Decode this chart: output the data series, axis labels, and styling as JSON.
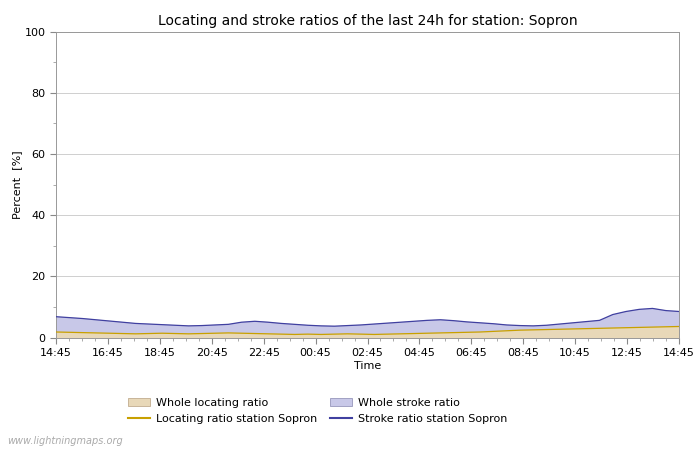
{
  "title": "Locating and stroke ratios of the last 24h for station: Sopron",
  "xlabel": "Time",
  "ylabel": "Percent  [%]",
  "ylim": [
    0,
    100
  ],
  "yticks": [
    0,
    20,
    40,
    60,
    80,
    100
  ],
  "yticks_minor": [
    10,
    30,
    50,
    70,
    90
  ],
  "xtick_labels": [
    "14:45",
    "16:45",
    "18:45",
    "20:45",
    "22:45",
    "00:45",
    "02:45",
    "04:45",
    "06:45",
    "08:45",
    "10:45",
    "12:45",
    "14:45"
  ],
  "background_color": "#ffffff",
  "plot_bg_color": "#ffffff",
  "grid_color": "#c8c8c8",
  "watermark": "www.lightningmaps.org",
  "whole_locating_color": "#e8d8b8",
  "whole_stroke_color": "#c8c8e8",
  "locating_line_color": "#c8a000",
  "stroke_line_color": "#4040a0",
  "whole_locating_values": [
    1.8,
    1.7,
    1.6,
    1.5,
    1.4,
    1.3,
    1.2,
    1.3,
    1.4,
    1.3,
    1.2,
    1.3,
    1.4,
    1.5,
    1.4,
    1.3,
    1.2,
    1.1,
    1.0,
    1.1,
    1.0,
    1.1,
    1.2,
    1.1,
    1.0,
    1.1,
    1.2,
    1.3,
    1.4,
    1.5,
    1.6,
    1.7,
    1.8,
    2.0,
    2.2,
    2.4,
    2.5,
    2.6,
    2.7,
    2.8,
    2.9,
    3.0,
    3.1,
    3.2,
    3.3,
    3.4,
    3.5,
    3.6
  ],
  "whole_stroke_values": [
    6.8,
    6.5,
    6.2,
    5.8,
    5.4,
    5.0,
    4.6,
    4.4,
    4.2,
    4.0,
    3.8,
    3.9,
    4.1,
    4.3,
    5.0,
    5.3,
    5.0,
    4.6,
    4.3,
    4.0,
    3.8,
    3.7,
    3.9,
    4.1,
    4.4,
    4.7,
    5.0,
    5.3,
    5.6,
    5.8,
    5.5,
    5.1,
    4.8,
    4.5,
    4.1,
    3.9,
    3.8,
    4.0,
    4.4,
    4.8,
    5.2,
    5.6,
    7.5,
    8.5,
    9.2,
    9.5,
    8.8,
    8.5
  ],
  "locating_line_values": [
    1.8,
    1.7,
    1.6,
    1.5,
    1.4,
    1.3,
    1.2,
    1.3,
    1.4,
    1.3,
    1.2,
    1.3,
    1.4,
    1.5,
    1.4,
    1.3,
    1.2,
    1.1,
    1.0,
    1.1,
    1.0,
    1.1,
    1.2,
    1.1,
    1.0,
    1.1,
    1.2,
    1.3,
    1.4,
    1.5,
    1.6,
    1.7,
    1.8,
    2.0,
    2.2,
    2.4,
    2.5,
    2.6,
    2.7,
    2.8,
    2.9,
    3.0,
    3.1,
    3.2,
    3.3,
    3.4,
    3.5,
    3.6
  ],
  "stroke_line_values": [
    6.8,
    6.5,
    6.2,
    5.8,
    5.4,
    5.0,
    4.6,
    4.4,
    4.2,
    4.0,
    3.8,
    3.9,
    4.1,
    4.3,
    5.0,
    5.3,
    5.0,
    4.6,
    4.3,
    4.0,
    3.8,
    3.7,
    3.9,
    4.1,
    4.4,
    4.7,
    5.0,
    5.3,
    5.6,
    5.8,
    5.5,
    5.1,
    4.8,
    4.5,
    4.1,
    3.9,
    3.8,
    4.0,
    4.4,
    4.8,
    5.2,
    5.6,
    7.5,
    8.5,
    9.2,
    9.5,
    8.8,
    8.5
  ],
  "title_fontsize": 10,
  "axis_fontsize": 8,
  "tick_fontsize": 8,
  "legend_fontsize": 8
}
